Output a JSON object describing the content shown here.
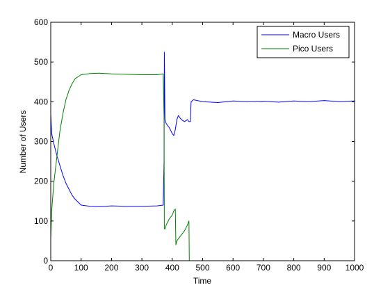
{
  "chart_data": {
    "type": "line",
    "xlabel": "Time",
    "ylabel": "Number of Users",
    "xlim": [
      0,
      1000
    ],
    "ylim": [
      0,
      600
    ],
    "x_ticks": [
      0,
      100,
      200,
      300,
      400,
      500,
      600,
      700,
      800,
      900,
      1000
    ],
    "y_ticks": [
      0,
      100,
      200,
      300,
      400,
      500,
      600
    ],
    "grid": false,
    "legend_position": "top-right",
    "series": [
      {
        "name": "Macro Users",
        "color": "#0000ff",
        "x": [
          0,
          3,
          10,
          20,
          30,
          40,
          50,
          60,
          70,
          80,
          100,
          130,
          160,
          200,
          250,
          300,
          350,
          370,
          373,
          374,
          376,
          380,
          390,
          400,
          405,
          410,
          415,
          420,
          430,
          440,
          450,
          455,
          460,
          461,
          462,
          470,
          500,
          550,
          600,
          650,
          700,
          750,
          800,
          850,
          900,
          950,
          1000
        ],
        "values": [
          370,
          320,
          295,
          265,
          240,
          215,
          195,
          180,
          165,
          155,
          140,
          137,
          136,
          138,
          137,
          137,
          138,
          140,
          250,
          525,
          355,
          345,
          335,
          320,
          315,
          330,
          355,
          365,
          355,
          350,
          355,
          350,
          350,
          385,
          400,
          405,
          400,
          398,
          402,
          400,
          401,
          399,
          402,
          400,
          403,
          400,
          402
        ]
      },
      {
        "name": "Pico Users",
        "color": "#007f00",
        "x": [
          0,
          3,
          10,
          20,
          30,
          40,
          50,
          60,
          70,
          80,
          100,
          130,
          160,
          200,
          250,
          300,
          350,
          370,
          373,
          374,
          376,
          380,
          390,
          400,
          405,
          410,
          412,
          415,
          420,
          430,
          440,
          450,
          455,
          456
        ],
        "values": [
          55,
          125,
          195,
          260,
          325,
          370,
          405,
          428,
          445,
          458,
          468,
          471,
          472,
          470,
          469,
          468,
          468,
          470,
          360,
          80,
          80,
          90,
          105,
          115,
          125,
          130,
          40,
          50,
          55,
          65,
          75,
          90,
          100,
          0
        ]
      }
    ]
  }
}
